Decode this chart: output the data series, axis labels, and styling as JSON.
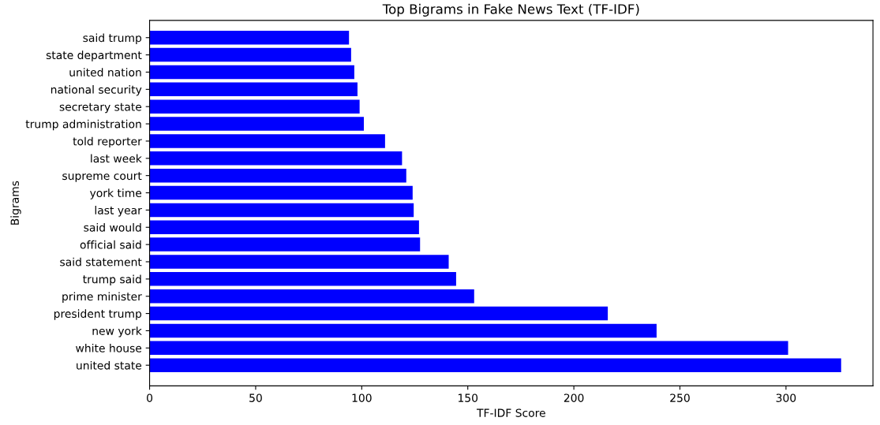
{
  "chart_data": {
    "type": "bar",
    "orientation": "horizontal",
    "title": "Top Bigrams in Fake News Text (TF-IDF)",
    "xlabel": "TF-IDF Score",
    "ylabel": "Bigrams",
    "categories": [
      "said trump",
      "state department",
      "united nation",
      "national security",
      "secretary state",
      "trump administration",
      "told reporter",
      "last week",
      "supreme court",
      "york time",
      "last year",
      "said would",
      "official said",
      "said statement",
      "trump said",
      "prime minister",
      "president trump",
      "new york",
      "white house",
      "united state"
    ],
    "values": [
      94,
      95,
      96.5,
      98,
      99,
      101,
      111,
      119,
      121,
      124,
      124.5,
      127,
      127.5,
      141,
      144.5,
      153,
      216,
      239,
      301,
      326
    ],
    "color": "#0000ff",
    "xlim": [
      0,
      341
    ],
    "xticks": [
      0,
      50,
      100,
      150,
      200,
      250,
      300
    ],
    "grid": false,
    "legend": false
  }
}
